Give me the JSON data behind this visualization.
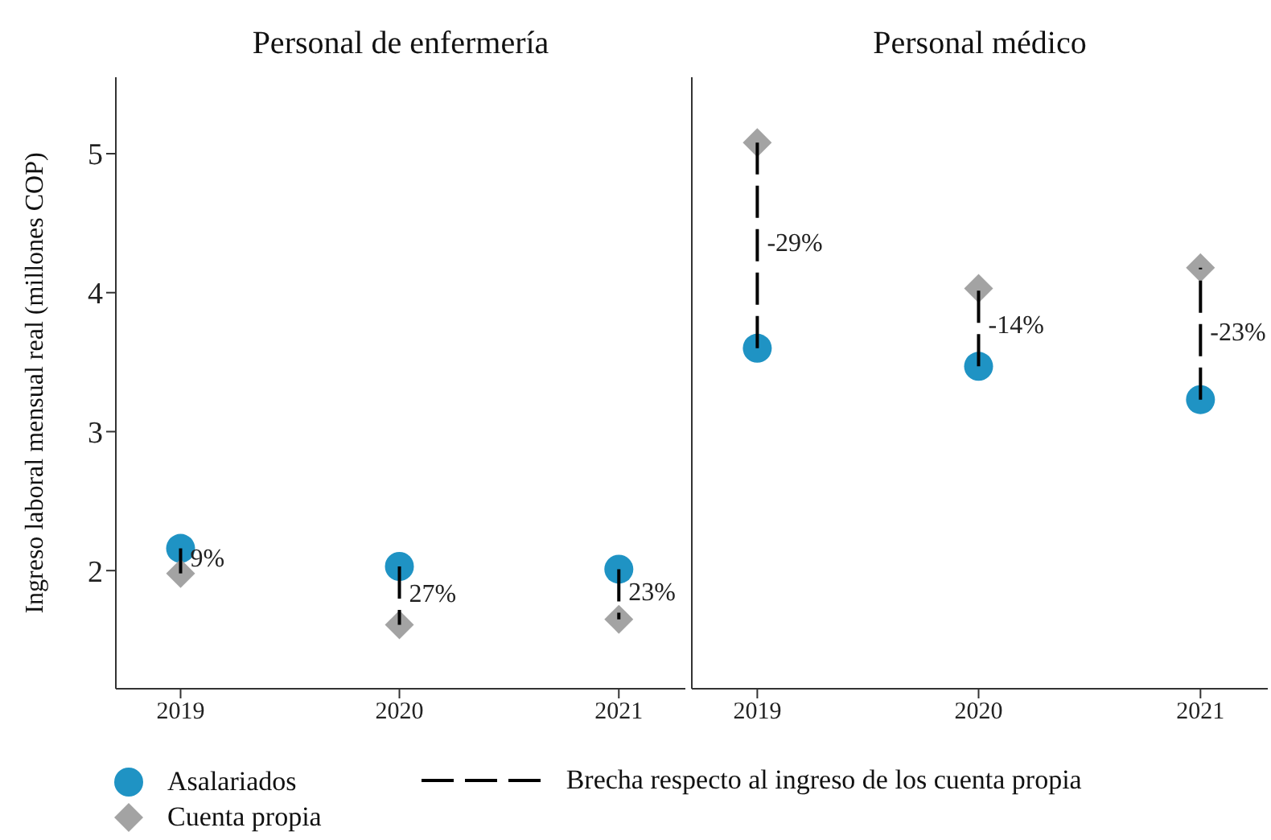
{
  "chart_data": [
    {
      "type": "scatter",
      "title": "Personal de enfermería",
      "ylabel": "Ingreso laboral mensual real (millones COP)",
      "x": [
        "2019",
        "2020",
        "2021"
      ],
      "xlim": [
        "2018-09-15",
        "2021-04-22"
      ],
      "xticks": [
        "2019",
        "2020",
        "2021"
      ],
      "ylim": [
        1.15,
        5.55
      ],
      "yticks": [
        2,
        3,
        4,
        5
      ],
      "grid": false,
      "legend": "bottom",
      "series": [
        {
          "name": "Brecha respecto al ingreso de los cuenta propia",
          "type": "line",
          "marker": "none",
          "line_style": "dashed",
          "color": "#000000",
          "x": [
            "2019",
            "2019"
          ],
          "values": [
            2.16,
            1.98
          ]
        },
        {
          "type": "line",
          "marker": "none",
          "line_style": "dashed",
          "color": "#000000",
          "x": [
            "2020",
            "2020"
          ],
          "values": [
            2.03,
            1.61
          ]
        },
        {
          "type": "line",
          "marker": "none",
          "line_style": "dashed",
          "color": "#000000",
          "x": [
            "2021",
            "2021"
          ],
          "values": [
            2.01,
            1.65
          ]
        },
        {
          "name": "Asalariados",
          "marker": "circle",
          "color": "#1f93c4",
          "values": [
            2.16,
            2.03,
            2.01
          ]
        },
        {
          "name": "Cuenta propia",
          "marker": "diamond",
          "color": "#a3a3a3",
          "values": [
            1.98,
            1.61,
            1.65
          ]
        }
      ],
      "annotations": [
        {
          "text": "9%",
          "x": "2019",
          "y": 2.07
        },
        {
          "text": "27%",
          "x": "2020",
          "y": 1.82
        },
        {
          "text": "23%",
          "x": "2021",
          "y": 1.83
        }
      ]
    },
    {
      "type": "scatter",
      "title": "Personal médico",
      "x": [
        "2019",
        "2020",
        "2021"
      ],
      "xlim": [
        "2018-09-15",
        "2021-04-22"
      ],
      "xticks": [
        "2019",
        "2020",
        "2021"
      ],
      "ylim": [
        1.15,
        5.55
      ],
      "yticks": [
        2,
        3,
        4,
        5
      ],
      "grid": false,
      "tick_labels": "x",
      "series": [
        {
          "type": "line",
          "marker": "none",
          "line_style": "dashed",
          "color": "#000000",
          "x": [
            "2019",
            "2019"
          ],
          "values": [
            3.6,
            5.08
          ]
        },
        {
          "type": "line",
          "marker": "none",
          "line_style": "dashed",
          "color": "#000000",
          "x": [
            "2020",
            "2020"
          ],
          "values": [
            3.47,
            4.03
          ]
        },
        {
          "type": "line",
          "marker": "none",
          "line_style": "dashed",
          "color": "#000000",
          "x": [
            "2021",
            "2021"
          ],
          "values": [
            3.23,
            4.18
          ]
        },
        {
          "marker": "circle",
          "color": "#1f93c4",
          "values": [
            3.6,
            3.47,
            3.23
          ]
        },
        {
          "marker": "diamond",
          "color": "#a3a3a3",
          "values": [
            5.08,
            4.03,
            4.18
          ]
        }
      ],
      "annotations": [
        {
          "text": "-29%",
          "x": "2019",
          "y": 4.34
        },
        {
          "text": "-14%",
          "x": "2020",
          "y": 3.75
        },
        {
          "text": "-23%",
          "x": "2021",
          "y": 3.7
        }
      ]
    }
  ]
}
